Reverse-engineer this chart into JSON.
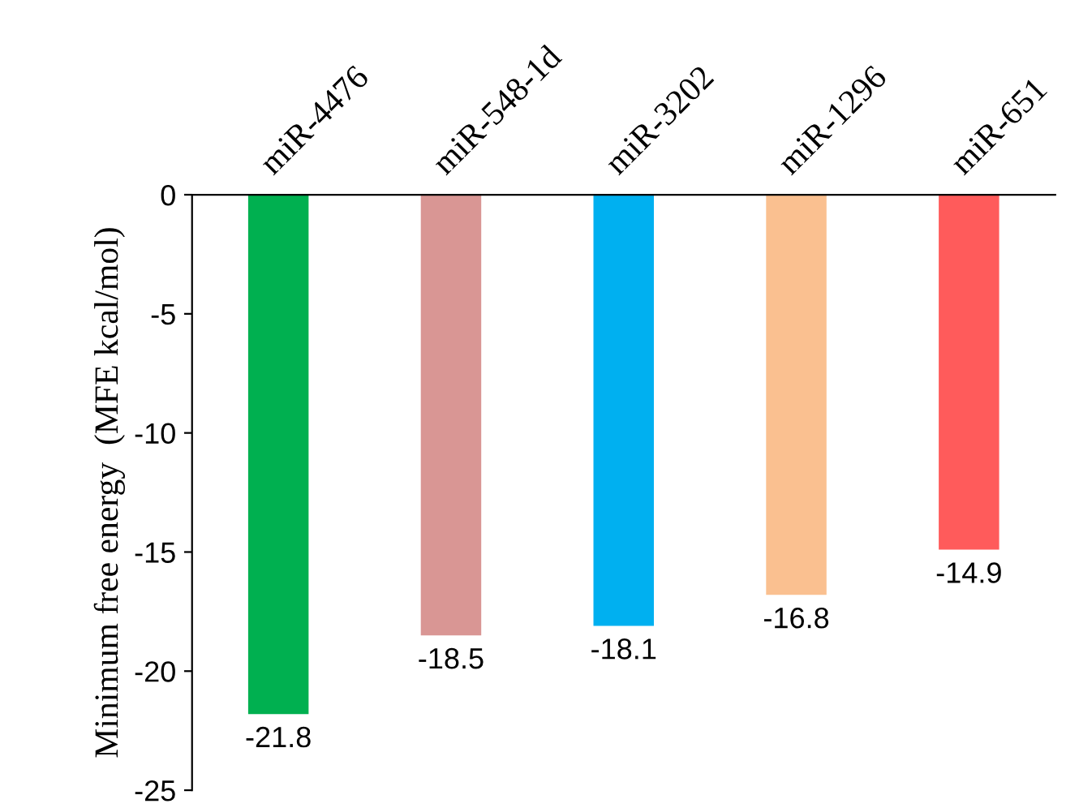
{
  "chart_data": {
    "type": "bar",
    "ylabel": "Minimum free energy  (MFE kcal/mol)",
    "categories": [
      "miR-4476",
      "miR-548-1d",
      "miR-3202",
      "miR-1296",
      "miR-651"
    ],
    "values": [
      -21.8,
      -18.5,
      -18.1,
      -16.8,
      -14.9
    ],
    "colors": [
      "#00b050",
      "#d99694",
      "#00b0f0",
      "#fac090",
      "#ff5b5b"
    ],
    "ylim": [
      -25,
      0
    ],
    "yticks": [
      0,
      -5,
      -10,
      -15,
      -20,
      -25
    ],
    "data_labels": true,
    "grid": false,
    "legend": false
  }
}
